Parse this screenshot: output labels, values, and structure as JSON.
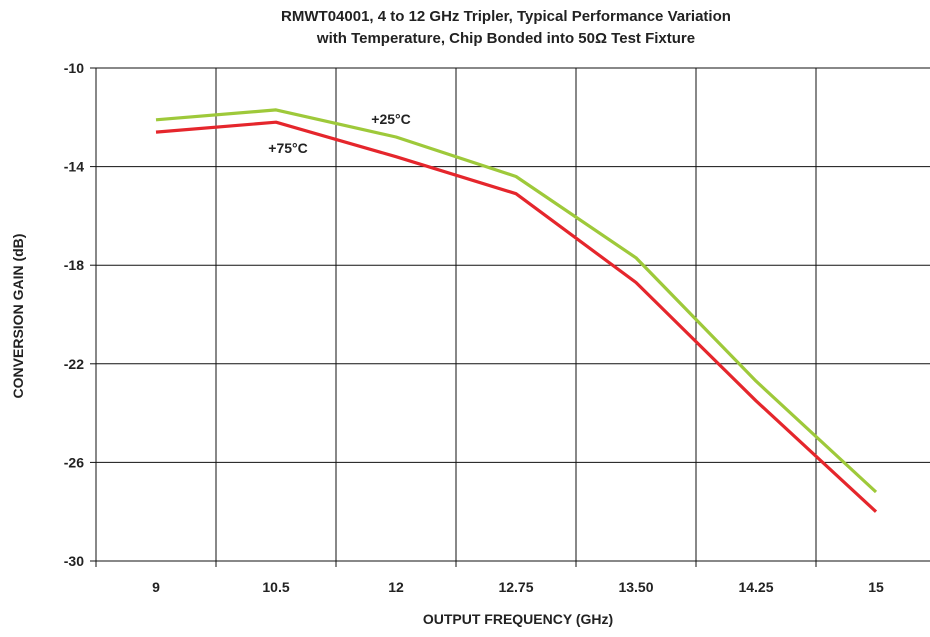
{
  "chart_data": {
    "type": "line",
    "title": [
      "RMWT04001, 4 to 12 GHz Tripler, Typical Performance Variation",
      "with Temperature, Chip Bonded into 50Ω Test Fixture"
    ],
    "xlabel": "OUTPUT FREQUENCY (GHz)",
    "ylabel": "CONVERSION GAIN (dB)",
    "categories": [
      "9",
      "10.5",
      "12",
      "12.75",
      "13.50",
      "14.25",
      "15"
    ],
    "ylim": [
      -30,
      -10
    ],
    "yticks": [
      "-10",
      "-14",
      "-18",
      "-22",
      "-26",
      "-30"
    ],
    "grid": true,
    "series": [
      {
        "name": "+25°C",
        "color": "#9ec93a",
        "values": [
          -12.1,
          -11.7,
          -12.8,
          -14.4,
          -17.7,
          -22.7,
          -27.2
        ]
      },
      {
        "name": "+75°C",
        "color": "#e5262c",
        "values": [
          -12.6,
          -12.2,
          -13.6,
          -15.1,
          -18.7,
          -23.5,
          -28.0
        ]
      }
    ]
  }
}
